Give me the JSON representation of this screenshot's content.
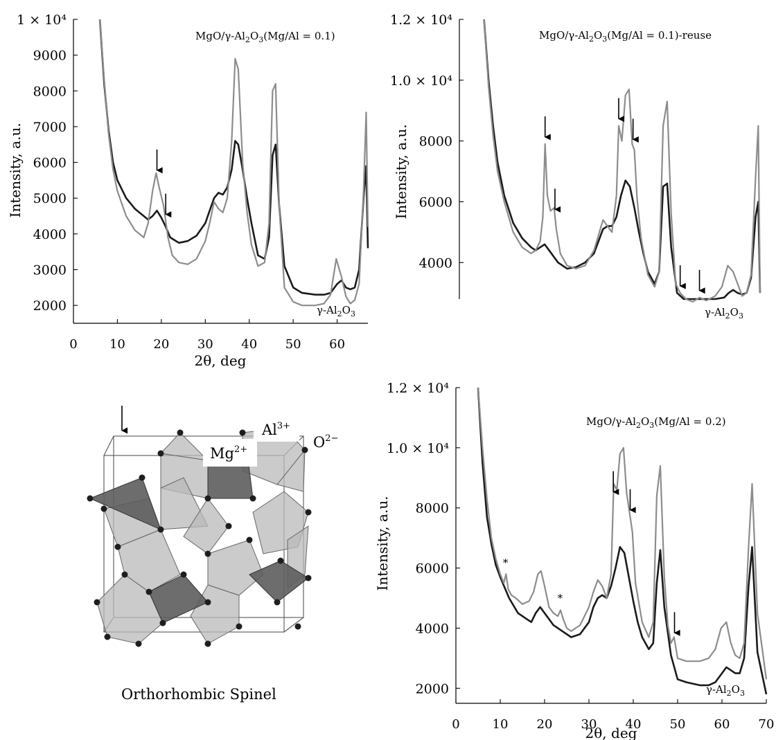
{
  "chart_data": [
    {
      "type": "line",
      "panel": "top-left",
      "title": "MgO/γ-Al2O3(Mg/Al = 0.1)",
      "xlabel": "2θ, deg",
      "ylabel": "Intensity, a.u.",
      "xlim": [
        0,
        67
      ],
      "ylim": [
        1500,
        10000
      ],
      "xticks": [
        "0",
        "10",
        "20",
        "30",
        "40",
        "50",
        "60"
      ],
      "yticks": [
        "1 × 10⁴",
        "9000",
        "8000",
        "7000",
        "6000",
        "5000",
        "4000",
        "3000",
        "2000"
      ],
      "ytick_values": [
        10000,
        9000,
        8000,
        7000,
        6000,
        5000,
        4000,
        3000,
        2000
      ],
      "annotation": "γ-Al2O3",
      "arrows_at_2theta": [
        19,
        21
      ],
      "series": [
        {
          "color": "#1a1a1a",
          "x": [
            6,
            7,
            8,
            9,
            10,
            12,
            14,
            16,
            17,
            18,
            19,
            20,
            21,
            22,
            24,
            26,
            28,
            30,
            31,
            32,
            33,
            34,
            35,
            36,
            36.8,
            37.5,
            38.5,
            39.5,
            40.5,
            42,
            43.5,
            44.5,
            45.3,
            46,
            46.8,
            48,
            50,
            52,
            55,
            57,
            58.5,
            60,
            61,
            62,
            63,
            64,
            65,
            66,
            66.6,
            67
          ],
          "y": [
            10000,
            8200,
            6900,
            6000,
            5500,
            5000,
            4700,
            4500,
            4400,
            4500,
            4650,
            4450,
            4200,
            3900,
            3750,
            3800,
            3950,
            4300,
            4650,
            5000,
            5150,
            5100,
            5300,
            5800,
            6600,
            6500,
            5800,
            5000,
            4300,
            3400,
            3300,
            3900,
            6200,
            6500,
            4800,
            3100,
            2500,
            2350,
            2300,
            2300,
            2350,
            2600,
            2700,
            2500,
            2450,
            2500,
            3000,
            5000,
            5900,
            3600
          ]
        },
        {
          "color": "#8c8c8c",
          "x": [
            6,
            7,
            8,
            9,
            10,
            12,
            14,
            16,
            17,
            18,
            18.8,
            19.5,
            20.5,
            21.5,
            22.5,
            24,
            26,
            28,
            30,
            31,
            32,
            33,
            34,
            35,
            36,
            36.8,
            37.5,
            38.5,
            39.5,
            40.5,
            42,
            43.5,
            44.5,
            45.3,
            46,
            46.8,
            48,
            50,
            52,
            55,
            57,
            58.5,
            59.8,
            61,
            62,
            63,
            64,
            65,
            66,
            66.6,
            67
          ],
          "y": [
            10000,
            8300,
            6800,
            5800,
            5200,
            4500,
            4100,
            3900,
            4300,
            5200,
            5700,
            5300,
            4800,
            3900,
            3400,
            3200,
            3150,
            3300,
            3800,
            4300,
            4900,
            4700,
            4600,
            5000,
            6600,
            8900,
            8600,
            6000,
            4600,
            3700,
            3100,
            3200,
            4300,
            8000,
            8200,
            4800,
            2500,
            2100,
            2000,
            2000,
            2050,
            2300,
            3300,
            2800,
            2250,
            2050,
            2150,
            2600,
            5200,
            7400,
            4200
          ]
        }
      ]
    },
    {
      "type": "line",
      "panel": "top-right",
      "title": "MgO/γ-Al2O3(Mg/Al = 0.1)-reuse",
      "xlabel": "",
      "ylabel": "Intensity, a.u.",
      "xlim": [
        0,
        67
      ],
      "ylim": [
        2800,
        12000
      ],
      "xticks": [],
      "yticks": [
        "1.2 × 10⁴",
        "1.0 × 10⁴",
        "8000",
        "6000",
        "4000"
      ],
      "ytick_values": [
        12000,
        10000,
        8000,
        6000,
        4000
      ],
      "annotation": "γ-Al2O3",
      "arrows_at_2theta": [
        19.1,
        21.3,
        35.5,
        38.7,
        49.2,
        53.5
      ],
      "series": [
        {
          "color": "#1a1a1a",
          "x": [
            5.5,
            6.5,
            7.5,
            8.5,
            10,
            12,
            14,
            16,
            17,
            18,
            19,
            20,
            21,
            22,
            24,
            26,
            28,
            30,
            31,
            32,
            33,
            34,
            35,
            36,
            37,
            38,
            39,
            40,
            41,
            42,
            43.5,
            44.5,
            45.4,
            46.3,
            47.2,
            48.5,
            50,
            52,
            55,
            57,
            59,
            60,
            61,
            62,
            63,
            64,
            65,
            66,
            66.6,
            67
          ],
          "y": [
            12000,
            10000,
            8500,
            7300,
            6200,
            5300,
            4800,
            4500,
            4400,
            4500,
            4600,
            4400,
            4200,
            4000,
            3800,
            3850,
            4000,
            4300,
            4700,
            5100,
            5200,
            5200,
            5500,
            6200,
            6700,
            6500,
            5800,
            5000,
            4300,
            3700,
            3300,
            3700,
            6500,
            6600,
            4500,
            3000,
            2800,
            2800,
            2800,
            2800,
            2850,
            3000,
            3100,
            3000,
            2950,
            3000,
            3500,
            5500,
            6000,
            3000
          ]
        },
        {
          "color": "#8c8c8c",
          "x": [
            5.5,
            6.5,
            7.5,
            8.5,
            10,
            12,
            14,
            16,
            17,
            18,
            18.6,
            19.1,
            19.6,
            20.3,
            21.1,
            21.6,
            22.5,
            24,
            26,
            28,
            30,
            31,
            32,
            33,
            34,
            35,
            35.5,
            36.2,
            37,
            37.8,
            38.5,
            39,
            39.6,
            40.5,
            42,
            43.5,
            44.5,
            45.4,
            46.3,
            47.2,
            48.2,
            49.2,
            50.5,
            52,
            53.5,
            55,
            57,
            58.5,
            59.8,
            61,
            62,
            63,
            64,
            65,
            66,
            66.6,
            67
          ],
          "y": [
            12000,
            9800,
            8200,
            7000,
            6000,
            5000,
            4500,
            4300,
            4400,
            4700,
            5500,
            7900,
            6200,
            5700,
            5800,
            5100,
            4300,
            3900,
            3800,
            3900,
            4400,
            4900,
            5400,
            5200,
            5000,
            6200,
            8500,
            8000,
            9500,
            9700,
            7900,
            7700,
            6100,
            4800,
            3600,
            3200,
            3700,
            8500,
            9300,
            5600,
            3300,
            3000,
            2800,
            2700,
            2850,
            2750,
            2900,
            3200,
            3900,
            3700,
            3300,
            2900,
            3000,
            3600,
            6800,
            8500,
            3000
          ]
        }
      ]
    },
    {
      "type": "line",
      "panel": "bottom-right",
      "title": "MgO/γ-Al2O3(Mg/Al = 0.2)",
      "xlabel": "2θ, deg",
      "ylabel": "Intensity, a.u.",
      "xlim": [
        0,
        70
      ],
      "ylim": [
        1500,
        12000
      ],
      "xticks": [
        "0",
        "10",
        "20",
        "30",
        "40",
        "50",
        "60",
        "70"
      ],
      "yticks": [
        "1.2 × 10⁴",
        "1.0 × 10⁴",
        "8000",
        "6000",
        "4000",
        "2000"
      ],
      "ytick_values": [
        12000,
        10000,
        8000,
        6000,
        4000,
        2000
      ],
      "annotation": "γ-Al2O3",
      "arrows_at_2theta": [
        35.5,
        39.3,
        49.3
      ],
      "stars_at_2theta": [
        11.2,
        23.5
      ],
      "series": [
        {
          "color": "#1a1a1a",
          "x": [
            5,
            6,
            7,
            8,
            9,
            10,
            12,
            14,
            16,
            17,
            18,
            19,
            20,
            21,
            22,
            24,
            26,
            28,
            30,
            31,
            32,
            33,
            34,
            35,
            36,
            37,
            38,
            39,
            40,
            41,
            42,
            43.5,
            44.5,
            45.3,
            46.1,
            47,
            48.5,
            50,
            52,
            55,
            57,
            58.5,
            60,
            61,
            62,
            63,
            64,
            65,
            66,
            66.8,
            68,
            70
          ],
          "y": [
            12000,
            9500,
            7700,
            6800,
            6100,
            5700,
            5000,
            4500,
            4300,
            4200,
            4500,
            4700,
            4500,
            4300,
            4100,
            3900,
            3700,
            3800,
            4200,
            4700,
            5000,
            5100,
            5000,
            5400,
            6000,
            6700,
            6500,
            5700,
            4900,
            4200,
            3700,
            3300,
            3500,
            5500,
            6600,
            4700,
            3100,
            2300,
            2200,
            2100,
            2100,
            2200,
            2500,
            2700,
            2600,
            2500,
            2500,
            3000,
            5400,
            6700,
            3200,
            1800
          ]
        },
        {
          "color": "#8c8c8c",
          "x": [
            5,
            6,
            7,
            8,
            9,
            10,
            10.8,
            11.3,
            11.8,
            12.5,
            13.5,
            15,
            16.5,
            17.5,
            18.5,
            19.2,
            20,
            21,
            22,
            23,
            23.6,
            24.2,
            25,
            26,
            28,
            30,
            31,
            32,
            33,
            34,
            35,
            35.6,
            36.3,
            37,
            37.8,
            38.5,
            39.2,
            39.8,
            40.5,
            42,
            43.5,
            44.5,
            45.3,
            46.1,
            47,
            47.8,
            48.5,
            49.2,
            50,
            52,
            55,
            57,
            58.5,
            59.8,
            61,
            62,
            63,
            64,
            65,
            66,
            66.8,
            68,
            70
          ],
          "y": [
            12000,
            10000,
            8300,
            7000,
            6300,
            5800,
            5500,
            5800,
            5300,
            5100,
            5000,
            4800,
            4900,
            5200,
            5800,
            5900,
            5400,
            4700,
            4500,
            4400,
            4600,
            4300,
            4000,
            3900,
            4100,
            4700,
            5200,
            5600,
            5400,
            5000,
            5800,
            8800,
            8600,
            9800,
            10000,
            8500,
            7800,
            7200,
            5500,
            4200,
            3700,
            4200,
            8400,
            9400,
            5700,
            4100,
            3500,
            3700,
            3000,
            2900,
            2900,
            3000,
            3300,
            4000,
            4200,
            3500,
            3100,
            3000,
            3500,
            6700,
            8800,
            4500,
            2300
          ]
        }
      ]
    }
  ],
  "structure": {
    "caption": "Orthorhombic Spinel",
    "ion_o": "O",
    "ion_o_charge": "2−",
    "ion_al": "Al",
    "ion_al_charge": "3+",
    "ion_mg": "Mg",
    "ion_mg_charge": "2+"
  }
}
